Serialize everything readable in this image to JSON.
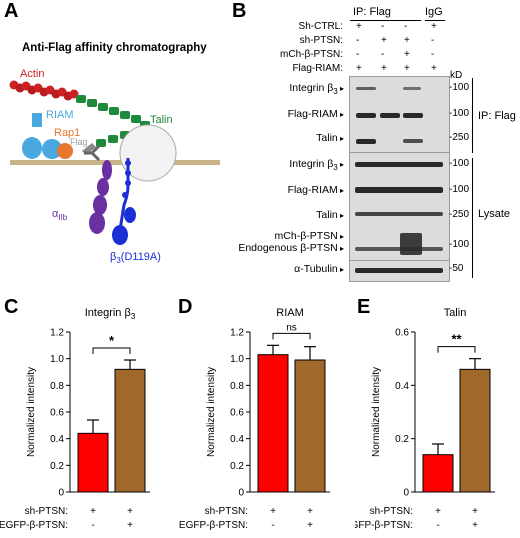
{
  "panels": {
    "A": "A",
    "B": "B",
    "C": "C",
    "D": "D",
    "E": "E"
  },
  "panelA": {
    "title": "Anti-Flag affinity chromatography",
    "labels": {
      "actin": "Actin",
      "riam": "RIAM",
      "rap1": "Rap1",
      "flag": "Flag",
      "talin": "Talin",
      "alpha": "α",
      "alpha_sub": "IIb",
      "beta": "β",
      "beta_sub": "3",
      "beta_mut": "(D119A)"
    },
    "colors": {
      "actin": "#cc2222",
      "riam": "#4aa8e0",
      "rap1": "#e8762e",
      "talin": "#1e8a3c",
      "alpha": "#6a2fa0",
      "beta": "#1b2fd6",
      "membrane": "#c9b48a"
    }
  },
  "panelB": {
    "header": {
      "ip_flag": "IP: Flag",
      "igg": "IgG"
    },
    "conditions": [
      {
        "label": "Sh-CTRL:",
        "values": [
          "+",
          "-",
          "-",
          "+"
        ]
      },
      {
        "label": "sh-PTSN:",
        "values": [
          "-",
          "+",
          "+",
          "-"
        ]
      },
      {
        "label": "mCh-β-PTSN:",
        "values": [
          "-",
          "-",
          "+",
          "-"
        ]
      },
      {
        "label": "Flag-RIAM:",
        "values": [
          "+",
          "+",
          "+",
          "+"
        ]
      }
    ],
    "kd_label": "kD",
    "ip_rows": [
      {
        "label": "Integrin β",
        "sub": "3",
        "kd": "100"
      },
      {
        "label": "Flag-RIAM",
        "sub": "",
        "kd": "100"
      },
      {
        "label": "Talin",
        "sub": "",
        "kd": "250"
      }
    ],
    "lysate_rows": [
      {
        "label": "Integrin β",
        "sub": "3",
        "kd": "100"
      },
      {
        "label": "Flag-RIAM",
        "sub": "",
        "kd": "100"
      },
      {
        "label": "Talin",
        "sub": "",
        "kd": "250"
      },
      {
        "label": "mCh-β-PTSN",
        "sub": "",
        "kd": ""
      },
      {
        "label": "Endogenous β-PTSN",
        "sub": "",
        "kd": "100"
      },
      {
        "label": "α-Tubulin",
        "sub": "",
        "kd": "50"
      }
    ],
    "group_labels": {
      "ip": "IP: Flag",
      "lysate": "Lysate"
    }
  },
  "chart_data": [
    {
      "type": "bar",
      "panel": "C",
      "title": "Integrin β",
      "title_sub": "3",
      "ylabel": "Normalized intensity",
      "ylim": [
        0,
        1.2
      ],
      "yticks": [
        "0",
        "0.2",
        "0.4",
        "0.6",
        "0.8",
        "1.0",
        "1.2"
      ],
      "values": [
        0.44,
        0.92
      ],
      "errors": [
        0.1,
        0.07
      ],
      "colors": [
        "#ff0000",
        "#a0692b"
      ],
      "significance": "*",
      "conditions": [
        {
          "label": "sh-PTSN:",
          "values": [
            "+",
            "+"
          ]
        },
        {
          "label": "EGFP-β-PTSN:",
          "values": [
            "-",
            "+"
          ]
        }
      ]
    },
    {
      "type": "bar",
      "panel": "D",
      "title": "RIAM",
      "ylabel": "Normalized intensity",
      "ylim": [
        0,
        1.2
      ],
      "yticks": [
        "0",
        "0.2",
        "0.4",
        "0.6",
        "0.8",
        "1.0",
        "1.2"
      ],
      "values": [
        1.03,
        0.99
      ],
      "errors": [
        0.07,
        0.1
      ],
      "colors": [
        "#ff0000",
        "#a0692b"
      ],
      "significance": "ns",
      "conditions": [
        {
          "label": "sh-PTSN:",
          "values": [
            "+",
            "+"
          ]
        },
        {
          "label": "EGFP-β-PTSN:",
          "values": [
            "-",
            "+"
          ]
        }
      ]
    },
    {
      "type": "bar",
      "panel": "E",
      "title": "Talin",
      "ylabel": "Normalized intensity",
      "ylim": [
        0,
        0.6
      ],
      "yticks": [
        "0",
        "0.2",
        "0.4",
        "0.6"
      ],
      "values": [
        0.14,
        0.46
      ],
      "errors": [
        0.04,
        0.04
      ],
      "colors": [
        "#ff0000",
        "#a0692b"
      ],
      "significance": "**",
      "conditions": [
        {
          "label": "sh-PTSN:",
          "values": [
            "+",
            "+"
          ]
        },
        {
          "label": "EGFP-β-PTSN:",
          "values": [
            "-",
            "+"
          ]
        }
      ]
    }
  ]
}
